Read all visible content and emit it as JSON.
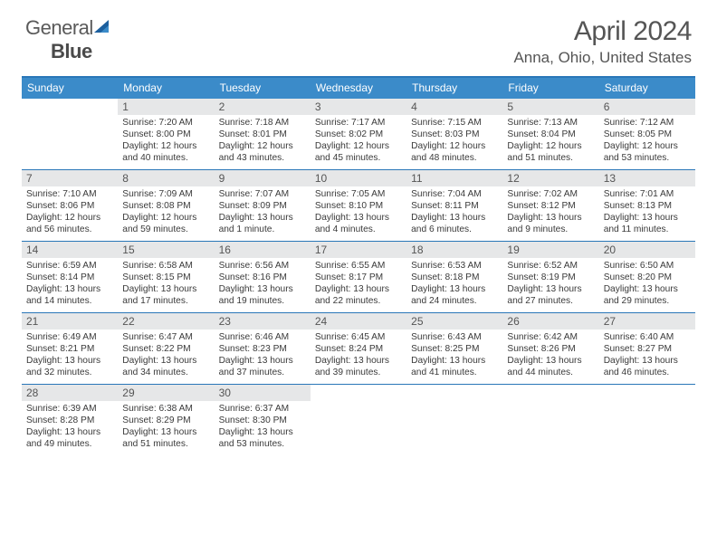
{
  "brand": {
    "word1": "General",
    "word2": "Blue"
  },
  "title": "April 2024",
  "location": "Anna, Ohio, United States",
  "colors": {
    "header_bg": "#3b8bc9",
    "border": "#2a77b8",
    "daynum_bg": "#e6e7e8",
    "text": "#3a3a3a"
  },
  "weekdays": [
    "Sunday",
    "Monday",
    "Tuesday",
    "Wednesday",
    "Thursday",
    "Friday",
    "Saturday"
  ],
  "weeks": [
    [
      {
        "n": "",
        "sr": "",
        "ss": "",
        "dl": ""
      },
      {
        "n": "1",
        "sr": "Sunrise: 7:20 AM",
        "ss": "Sunset: 8:00 PM",
        "dl": "Daylight: 12 hours and 40 minutes."
      },
      {
        "n": "2",
        "sr": "Sunrise: 7:18 AM",
        "ss": "Sunset: 8:01 PM",
        "dl": "Daylight: 12 hours and 43 minutes."
      },
      {
        "n": "3",
        "sr": "Sunrise: 7:17 AM",
        "ss": "Sunset: 8:02 PM",
        "dl": "Daylight: 12 hours and 45 minutes."
      },
      {
        "n": "4",
        "sr": "Sunrise: 7:15 AM",
        "ss": "Sunset: 8:03 PM",
        "dl": "Daylight: 12 hours and 48 minutes."
      },
      {
        "n": "5",
        "sr": "Sunrise: 7:13 AM",
        "ss": "Sunset: 8:04 PM",
        "dl": "Daylight: 12 hours and 51 minutes."
      },
      {
        "n": "6",
        "sr": "Sunrise: 7:12 AM",
        "ss": "Sunset: 8:05 PM",
        "dl": "Daylight: 12 hours and 53 minutes."
      }
    ],
    [
      {
        "n": "7",
        "sr": "Sunrise: 7:10 AM",
        "ss": "Sunset: 8:06 PM",
        "dl": "Daylight: 12 hours and 56 minutes."
      },
      {
        "n": "8",
        "sr": "Sunrise: 7:09 AM",
        "ss": "Sunset: 8:08 PM",
        "dl": "Daylight: 12 hours and 59 minutes."
      },
      {
        "n": "9",
        "sr": "Sunrise: 7:07 AM",
        "ss": "Sunset: 8:09 PM",
        "dl": "Daylight: 13 hours and 1 minute."
      },
      {
        "n": "10",
        "sr": "Sunrise: 7:05 AM",
        "ss": "Sunset: 8:10 PM",
        "dl": "Daylight: 13 hours and 4 minutes."
      },
      {
        "n": "11",
        "sr": "Sunrise: 7:04 AM",
        "ss": "Sunset: 8:11 PM",
        "dl": "Daylight: 13 hours and 6 minutes."
      },
      {
        "n": "12",
        "sr": "Sunrise: 7:02 AM",
        "ss": "Sunset: 8:12 PM",
        "dl": "Daylight: 13 hours and 9 minutes."
      },
      {
        "n": "13",
        "sr": "Sunrise: 7:01 AM",
        "ss": "Sunset: 8:13 PM",
        "dl": "Daylight: 13 hours and 11 minutes."
      }
    ],
    [
      {
        "n": "14",
        "sr": "Sunrise: 6:59 AM",
        "ss": "Sunset: 8:14 PM",
        "dl": "Daylight: 13 hours and 14 minutes."
      },
      {
        "n": "15",
        "sr": "Sunrise: 6:58 AM",
        "ss": "Sunset: 8:15 PM",
        "dl": "Daylight: 13 hours and 17 minutes."
      },
      {
        "n": "16",
        "sr": "Sunrise: 6:56 AM",
        "ss": "Sunset: 8:16 PM",
        "dl": "Daylight: 13 hours and 19 minutes."
      },
      {
        "n": "17",
        "sr": "Sunrise: 6:55 AM",
        "ss": "Sunset: 8:17 PM",
        "dl": "Daylight: 13 hours and 22 minutes."
      },
      {
        "n": "18",
        "sr": "Sunrise: 6:53 AM",
        "ss": "Sunset: 8:18 PM",
        "dl": "Daylight: 13 hours and 24 minutes."
      },
      {
        "n": "19",
        "sr": "Sunrise: 6:52 AM",
        "ss": "Sunset: 8:19 PM",
        "dl": "Daylight: 13 hours and 27 minutes."
      },
      {
        "n": "20",
        "sr": "Sunrise: 6:50 AM",
        "ss": "Sunset: 8:20 PM",
        "dl": "Daylight: 13 hours and 29 minutes."
      }
    ],
    [
      {
        "n": "21",
        "sr": "Sunrise: 6:49 AM",
        "ss": "Sunset: 8:21 PM",
        "dl": "Daylight: 13 hours and 32 minutes."
      },
      {
        "n": "22",
        "sr": "Sunrise: 6:47 AM",
        "ss": "Sunset: 8:22 PM",
        "dl": "Daylight: 13 hours and 34 minutes."
      },
      {
        "n": "23",
        "sr": "Sunrise: 6:46 AM",
        "ss": "Sunset: 8:23 PM",
        "dl": "Daylight: 13 hours and 37 minutes."
      },
      {
        "n": "24",
        "sr": "Sunrise: 6:45 AM",
        "ss": "Sunset: 8:24 PM",
        "dl": "Daylight: 13 hours and 39 minutes."
      },
      {
        "n": "25",
        "sr": "Sunrise: 6:43 AM",
        "ss": "Sunset: 8:25 PM",
        "dl": "Daylight: 13 hours and 41 minutes."
      },
      {
        "n": "26",
        "sr": "Sunrise: 6:42 AM",
        "ss": "Sunset: 8:26 PM",
        "dl": "Daylight: 13 hours and 44 minutes."
      },
      {
        "n": "27",
        "sr": "Sunrise: 6:40 AM",
        "ss": "Sunset: 8:27 PM",
        "dl": "Daylight: 13 hours and 46 minutes."
      }
    ],
    [
      {
        "n": "28",
        "sr": "Sunrise: 6:39 AM",
        "ss": "Sunset: 8:28 PM",
        "dl": "Daylight: 13 hours and 49 minutes."
      },
      {
        "n": "29",
        "sr": "Sunrise: 6:38 AM",
        "ss": "Sunset: 8:29 PM",
        "dl": "Daylight: 13 hours and 51 minutes."
      },
      {
        "n": "30",
        "sr": "Sunrise: 6:37 AM",
        "ss": "Sunset: 8:30 PM",
        "dl": "Daylight: 13 hours and 53 minutes."
      },
      {
        "n": "",
        "sr": "",
        "ss": "",
        "dl": ""
      },
      {
        "n": "",
        "sr": "",
        "ss": "",
        "dl": ""
      },
      {
        "n": "",
        "sr": "",
        "ss": "",
        "dl": ""
      },
      {
        "n": "",
        "sr": "",
        "ss": "",
        "dl": ""
      }
    ]
  ]
}
